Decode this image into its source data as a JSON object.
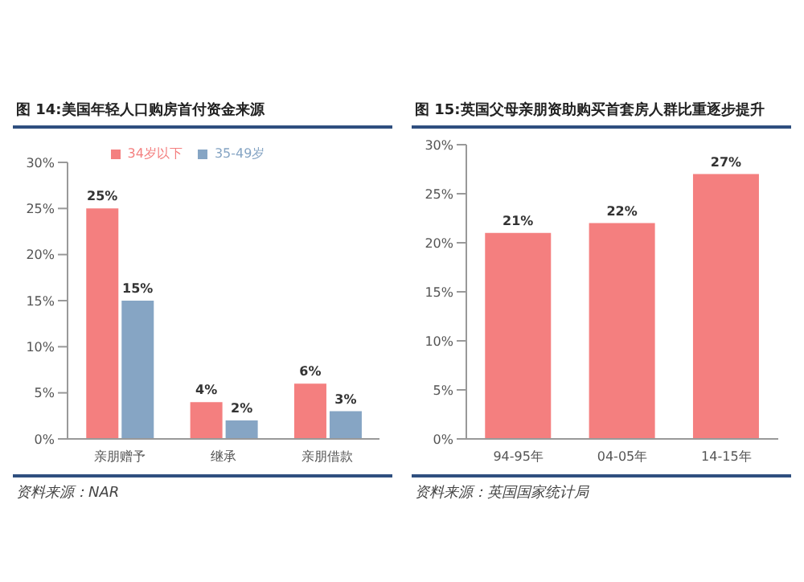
{
  "chart_data": [
    {
      "type": "bar",
      "title": "图 14:美国年轻人口购房首付资金来源",
      "categories": [
        "亲朋赠予",
        "继承",
        "亲朋借款"
      ],
      "series": [
        {
          "name": "34岁以下",
          "color": "#f47f7f",
          "values": [
            25,
            4,
            6
          ],
          "value_labels": [
            "25%",
            "4%",
            "6%"
          ]
        },
        {
          "name": "35-49岁",
          "color": "#86a5c4",
          "values": [
            15,
            2,
            3
          ],
          "value_labels": [
            "15%",
            "2%",
            "3%"
          ]
        }
      ],
      "ylim": [
        0,
        30
      ],
      "yticks": [
        {
          "value": 0,
          "label": "0%"
        },
        {
          "value": 5,
          "label": "5%"
        },
        {
          "value": 10,
          "label": "10%"
        },
        {
          "value": 15,
          "label": "15%"
        },
        {
          "value": 20,
          "label": "20%"
        },
        {
          "value": 25,
          "label": "25%"
        },
        {
          "value": 30,
          "label": "30%"
        }
      ],
      "legend": "top",
      "annotations": [
        "资料来源：NAR"
      ]
    },
    {
      "type": "bar",
      "title": "图 15:英国父母亲朋资助购买首套房人群比重逐步提升",
      "categories": [
        "94-95年",
        "04-05年",
        "14-15年"
      ],
      "series": [
        {
          "color": "#f47f7f",
          "values": [
            21,
            22,
            27
          ],
          "value_labels": [
            "21%",
            "22%",
            "27%"
          ]
        }
      ],
      "ylim": [
        0,
        30
      ],
      "yticks": [
        {
          "value": 0,
          "label": "0%"
        },
        {
          "value": 5,
          "label": "5%"
        },
        {
          "value": 10,
          "label": "10%"
        },
        {
          "value": 15,
          "label": "15%"
        },
        {
          "value": 20,
          "label": "20%"
        },
        {
          "value": 25,
          "label": "25%"
        },
        {
          "value": 30,
          "label": "30%"
        }
      ],
      "legend": false,
      "annotations": [
        "资料来源：英国国家统计局"
      ]
    }
  ]
}
